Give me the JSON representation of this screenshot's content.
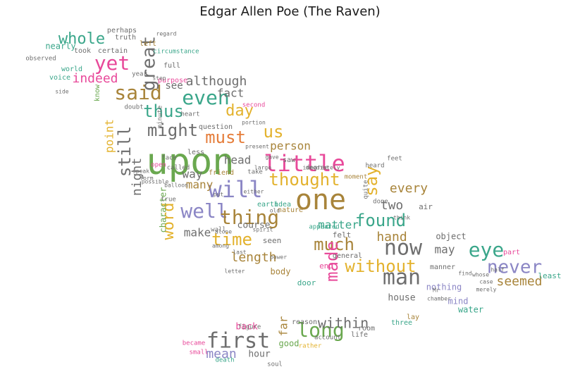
{
  "title": "Edgar Allen Poe (The Raven)",
  "palette": {
    "green": "#6aa84f",
    "teal": "#3aa68a",
    "pink": "#e8499a",
    "gold": "#a8843a",
    "yellow": "#e3b22d",
    "purple": "#8b86c5",
    "gray": "#6e6e6e",
    "orange": "#e57d3a"
  },
  "words": [
    {
      "text": "upon",
      "color": "green"
    },
    {
      "text": "one",
      "color": "gold"
    },
    {
      "text": "little",
      "color": "pink"
    },
    {
      "text": "will",
      "color": "purple"
    },
    {
      "text": "now",
      "color": "gray"
    },
    {
      "text": "thought",
      "color": "yellow"
    },
    {
      "text": "man",
      "color": "gray"
    },
    {
      "text": "without",
      "color": "yellow"
    },
    {
      "text": "first",
      "color": "gray"
    },
    {
      "text": "long",
      "color": "green"
    },
    {
      "text": "eye",
      "color": "teal"
    },
    {
      "text": "never",
      "color": "purple"
    },
    {
      "text": "well",
      "color": "purple"
    },
    {
      "text": "thing",
      "color": "gold"
    },
    {
      "text": "time",
      "color": "yellow"
    },
    {
      "text": "much",
      "color": "gold"
    },
    {
      "text": "found",
      "color": "teal"
    },
    {
      "text": "made",
      "color": "pink"
    },
    {
      "text": "say",
      "color": "yellow"
    },
    {
      "text": "said",
      "color": "gold"
    },
    {
      "text": "even",
      "color": "teal"
    },
    {
      "text": "great",
      "color": "gray"
    },
    {
      "text": "whole",
      "color": "teal"
    },
    {
      "text": "yet",
      "color": "pink"
    },
    {
      "text": "thus",
      "color": "teal"
    },
    {
      "text": "day",
      "color": "yellow"
    },
    {
      "text": "must",
      "color": "orange"
    },
    {
      "text": "us",
      "color": "yellow"
    },
    {
      "text": "might",
      "color": "gray"
    },
    {
      "text": "still",
      "color": "gray"
    },
    {
      "text": "word",
      "color": "yellow"
    },
    {
      "text": "within",
      "color": "gray"
    },
    {
      "text": "length",
      "color": "gold"
    },
    {
      "text": "seemed",
      "color": "gold"
    },
    {
      "text": "mean",
      "color": "purple"
    },
    {
      "text": "matter",
      "color": "teal"
    },
    {
      "text": "two",
      "color": "gray"
    },
    {
      "text": "hand",
      "color": "gold"
    },
    {
      "text": "every",
      "color": "gold"
    },
    {
      "text": "although",
      "color": "gray"
    },
    {
      "text": "indeed",
      "color": "pink"
    },
    {
      "text": "fact",
      "color": "gray"
    },
    {
      "text": "make",
      "color": "gray"
    },
    {
      "text": "night",
      "color": "gray"
    },
    {
      "text": "point",
      "color": "yellow"
    },
    {
      "text": "person",
      "color": "gold"
    },
    {
      "text": "head",
      "color": "gray"
    },
    {
      "text": "many",
      "color": "gold"
    },
    {
      "text": "way",
      "color": "gray"
    },
    {
      "text": "far",
      "color": "gold"
    },
    {
      "text": "may",
      "color": "gray"
    },
    {
      "text": "see",
      "color": "gray"
    },
    {
      "text": "nearly",
      "color": "teal"
    },
    {
      "text": "character",
      "color": "green"
    },
    {
      "text": "course",
      "color": "gray"
    },
    {
      "text": "house",
      "color": "gray"
    },
    {
      "text": "back",
      "color": "pink"
    },
    {
      "text": "hour",
      "color": "gray"
    },
    {
      "text": "good",
      "color": "green"
    },
    {
      "text": "object",
      "color": "gray"
    },
    {
      "text": "nothing",
      "color": "purple"
    },
    {
      "text": "mind",
      "color": "purple"
    },
    {
      "text": "water",
      "color": "teal"
    },
    {
      "text": "least",
      "color": "teal"
    },
    {
      "text": "body",
      "color": "gold"
    },
    {
      "text": "end",
      "color": "pink"
    },
    {
      "text": "door",
      "color": "teal"
    },
    {
      "text": "seen",
      "color": "gray"
    },
    {
      "text": "felt",
      "color": "gray"
    },
    {
      "text": "air",
      "color": "gray"
    },
    {
      "text": "took",
      "color": "gray"
    },
    {
      "text": "perhaps",
      "color": "gray"
    },
    {
      "text": "left",
      "color": "gold"
    },
    {
      "text": "full",
      "color": "gray"
    },
    {
      "text": "saw",
      "color": "gray"
    },
    {
      "text": "less",
      "color": "gray"
    },
    {
      "text": "question",
      "color": "gray"
    },
    {
      "text": "friend",
      "color": "gold"
    },
    {
      "text": "nature",
      "color": "gold"
    },
    {
      "text": "idea",
      "color": "teal"
    },
    {
      "text": "earth",
      "color": "teal"
    },
    {
      "text": "general",
      "color": "gray"
    },
    {
      "text": "lay",
      "color": "gold"
    },
    {
      "text": "life",
      "color": "gray"
    },
    {
      "text": "room",
      "color": "gray"
    },
    {
      "text": "three",
      "color": "teal"
    },
    {
      "text": "reason",
      "color": "gray"
    },
    {
      "text": "death",
      "color": "teal"
    },
    {
      "text": "soul",
      "color": "gray"
    },
    {
      "text": "became",
      "color": "pink"
    },
    {
      "text": "small",
      "color": "pink"
    },
    {
      "text": "figure",
      "color": "gray"
    },
    {
      "text": "rather",
      "color": "yellow"
    },
    {
      "text": "account",
      "color": "gray"
    },
    {
      "text": "manner",
      "color": "gray"
    },
    {
      "text": "part",
      "color": "pink"
    },
    {
      "text": "voice",
      "color": "teal"
    },
    {
      "text": "world",
      "color": "teal"
    },
    {
      "text": "truth",
      "color": "gray"
    },
    {
      "text": "certain",
      "color": "gray"
    },
    {
      "text": "year",
      "color": "gray"
    },
    {
      "text": "know",
      "color": "green"
    },
    {
      "text": "heart",
      "color": "gray"
    },
    {
      "text": "open",
      "color": "pink"
    },
    {
      "text": "called",
      "color": "gray"
    },
    {
      "text": "face",
      "color": "gray"
    },
    {
      "text": "appeared",
      "color": "teal"
    },
    {
      "text": "spirit",
      "color": "gray"
    },
    {
      "text": "last",
      "color": "gray"
    },
    {
      "text": "among",
      "color": "gray"
    },
    {
      "text": "wall",
      "color": "gray"
    },
    {
      "text": "alone",
      "color": "gray"
    },
    {
      "text": "true",
      "color": "gray"
    },
    {
      "text": "possible",
      "color": "gray"
    },
    {
      "text": "speak",
      "color": "gray"
    },
    {
      "text": "form",
      "color": "gray"
    },
    {
      "text": "heard",
      "color": "gray"
    },
    {
      "text": "feet",
      "color": "gray"
    },
    {
      "text": "think",
      "color": "gray"
    },
    {
      "text": "done",
      "color": "gray"
    },
    {
      "text": "quite",
      "color": "gray"
    },
    {
      "text": "moment",
      "color": "gold"
    },
    {
      "text": "take",
      "color": "gray"
    },
    {
      "text": "large",
      "color": "gray"
    },
    {
      "text": "portion",
      "color": "gray"
    },
    {
      "text": "second",
      "color": "pink"
    },
    {
      "text": "doubt",
      "color": "gray"
    },
    {
      "text": "minute",
      "color": "gray"
    },
    {
      "text": "purpose",
      "color": "pink"
    },
    {
      "text": "circumstance",
      "color": "teal"
    },
    {
      "text": "either",
      "color": "gray"
    },
    {
      "text": "put",
      "color": "gray"
    },
    {
      "text": "letter",
      "color": "gray"
    },
    {
      "text": "present",
      "color": "gray"
    },
    {
      "text": "degree",
      "color": "gray"
    },
    {
      "text": "immediately",
      "color": "gray"
    },
    {
      "text": "old",
      "color": "gray"
    },
    {
      "text": "Mr",
      "color": "gray"
    },
    {
      "text": "whose",
      "color": "gray"
    },
    {
      "text": "half",
      "color": "gray"
    },
    {
      "text": "find",
      "color": "gray"
    },
    {
      "text": "chamber",
      "color": "gray"
    },
    {
      "text": "case",
      "color": "gray"
    },
    {
      "text": "balloon",
      "color": "gray"
    },
    {
      "text": "side",
      "color": "gray"
    },
    {
      "text": "observed",
      "color": "gray"
    },
    {
      "text": "regard",
      "color": "gray"
    },
    {
      "text": "step",
      "color": "gray"
    },
    {
      "text": "gave",
      "color": "gray"
    },
    {
      "text": "power",
      "color": "gray"
    },
    {
      "text": "merely",
      "color": "gray"
    },
    {
      "text": "another",
      "color": "gray"
    }
  ]
}
